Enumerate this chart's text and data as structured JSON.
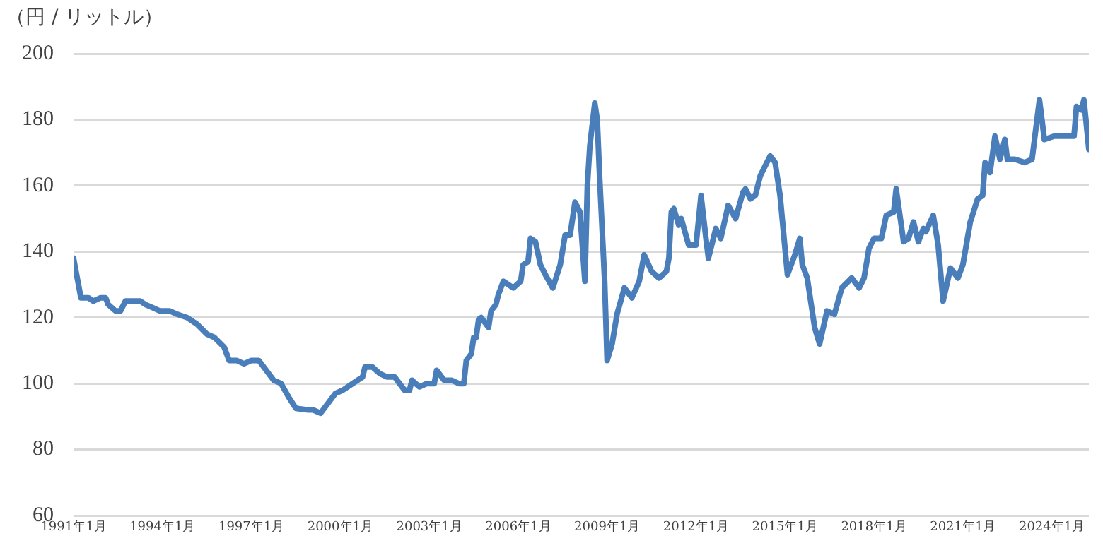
{
  "chart_data": {
    "type": "line",
    "ylabel": "（円 / リットル）",
    "x": [
      "1991-01",
      "1991-03",
      "1991-04",
      "1991-07",
      "1991-09",
      "1991-12",
      "1992-02",
      "1992-03",
      "1992-06",
      "1992-08",
      "1992-10",
      "1993-04",
      "1993-06",
      "1993-09",
      "1993-12",
      "1994-04",
      "1994-07",
      "1994-11",
      "1995-03",
      "1995-07",
      "1995-10",
      "1996-02",
      "1996-04",
      "1996-07",
      "1996-10",
      "1997-01",
      "1997-04",
      "1997-07",
      "1997-10",
      "1998-01",
      "1998-04",
      "1998-07",
      "1998-12",
      "1999-02",
      "1999-05",
      "1999-08",
      "1999-11",
      "2000-02",
      "2000-06",
      "2000-10",
      "2000-11",
      "2001-02",
      "2001-05",
      "2001-08",
      "2001-11",
      "2002-03",
      "2002-05",
      "2002-06",
      "2002-09",
      "2002-12",
      "2003-03",
      "2003-04",
      "2003-07",
      "2003-10",
      "2004-01",
      "2004-03",
      "2004-04",
      "2004-06",
      "2004-07",
      "2004-08",
      "2004-09",
      "2004-10",
      "2005-01",
      "2005-02",
      "2005-04",
      "2005-05",
      "2005-07",
      "2005-11",
      "2006-02",
      "2006-03",
      "2006-05",
      "2006-06",
      "2006-08",
      "2006-10",
      "2006-12",
      "2007-03",
      "2007-06",
      "2007-08",
      "2007-10",
      "2007-11",
      "2007-12",
      "2008-02",
      "2008-04",
      "2008-05",
      "2008-06",
      "2008-08",
      "2008-09",
      "2008-10",
      "2008-12",
      "2009-01",
      "2009-03",
      "2009-05",
      "2009-08",
      "2009-11",
      "2010-02",
      "2010-04",
      "2010-07",
      "2010-10",
      "2011-01",
      "2011-02",
      "2011-03",
      "2011-04",
      "2011-06",
      "2011-07",
      "2011-10",
      "2012-01",
      "2012-03",
      "2012-05",
      "2012-06",
      "2012-09",
      "2012-11",
      "2013-02",
      "2013-05",
      "2013-08",
      "2013-09",
      "2013-11",
      "2014-01",
      "2014-03",
      "2014-07",
      "2014-09",
      "2014-11",
      "2015-02",
      "2015-05",
      "2015-07",
      "2015-08",
      "2015-10",
      "2016-01",
      "2016-03",
      "2016-06",
      "2016-09",
      "2016-12",
      "2017-04",
      "2017-07",
      "2017-09",
      "2017-11",
      "2018-01",
      "2018-04",
      "2018-06",
      "2018-09",
      "2018-10",
      "2019-01",
      "2019-03",
      "2019-05",
      "2019-07",
      "2019-09",
      "2019-10",
      "2020-01",
      "2020-03",
      "2020-05",
      "2020-08",
      "2020-11",
      "2021-01",
      "2021-04",
      "2021-07",
      "2021-09",
      "2021-10",
      "2021-12",
      "2022-02",
      "2022-04",
      "2022-06",
      "2022-07",
      "2022-10",
      "2023-02",
      "2023-05",
      "2023-08",
      "2023-10",
      "2024-02",
      "2024-05",
      "2024-08",
      "2024-10",
      "2024-11",
      "2025-01",
      "2025-02",
      "2025-04"
    ],
    "series": [
      {
        "color": "#4a7ebb",
        "values": [
          138,
          130,
          126,
          126,
          125,
          126,
          126,
          124,
          122,
          122,
          125,
          125,
          124,
          123,
          122,
          122,
          121,
          120,
          118,
          115,
          114,
          111,
          107,
          107,
          106,
          107,
          107,
          104,
          101,
          100,
          96,
          92.5,
          92,
          92,
          91,
          94,
          97,
          98,
          100,
          102,
          105,
          105,
          103,
          102,
          102,
          98,
          98,
          101,
          99,
          100,
          100,
          104,
          101,
          101,
          100,
          100,
          107,
          109,
          114,
          114,
          119.5,
          120,
          117,
          122,
          124,
          127,
          131,
          129,
          131,
          136,
          137,
          144,
          143,
          136,
          133,
          129,
          136,
          145,
          145,
          150,
          155,
          152,
          131,
          160,
          172,
          185,
          180,
          162,
          131,
          107,
          112,
          121,
          129,
          126,
          131,
          139,
          134,
          132,
          134,
          138,
          152,
          153,
          148,
          150,
          142,
          142,
          157,
          144,
          138,
          147,
          144,
          154,
          150,
          158,
          159,
          156,
          157,
          163,
          169,
          167,
          157,
          133,
          139,
          144,
          136,
          132,
          117,
          112,
          122,
          121,
          129,
          132,
          129,
          132,
          141,
          144,
          144,
          151,
          152,
          159,
          143,
          144,
          149,
          143,
          147,
          146,
          151,
          142,
          125,
          135,
          132,
          136,
          149,
          156,
          157,
          167,
          164,
          175,
          168,
          174,
          168,
          168,
          167,
          168,
          186,
          174,
          175,
          175,
          175,
          175,
          184,
          183,
          186,
          171
        ]
      }
    ],
    "xlim": [
      "1991-01",
      "2025-04"
    ],
    "xticks": [
      {
        "value": "1991-01",
        "label": "1991年1月"
      },
      {
        "value": "1994-01",
        "label": "1994年1月"
      },
      {
        "value": "1997-01",
        "label": "1997年1月"
      },
      {
        "value": "2000-01",
        "label": "2000年1月"
      },
      {
        "value": "2003-01",
        "label": "2003年1月"
      },
      {
        "value": "2006-01",
        "label": "2006年1月"
      },
      {
        "value": "2009-01",
        "label": "2009年1月"
      },
      {
        "value": "2012-01",
        "label": "2012年1月"
      },
      {
        "value": "2015-01",
        "label": "2015年1月"
      },
      {
        "value": "2018-01",
        "label": "2018年1月"
      },
      {
        "value": "2021-01",
        "label": "2021年1月"
      },
      {
        "value": "2024-01",
        "label": "2024年1月"
      }
    ],
    "ylim": [
      60,
      200
    ],
    "yticks": [
      60,
      80,
      100,
      120,
      140,
      160,
      180,
      200
    ],
    "grid": "y",
    "legend": false,
    "marker": "none",
    "line_style": "solid"
  }
}
